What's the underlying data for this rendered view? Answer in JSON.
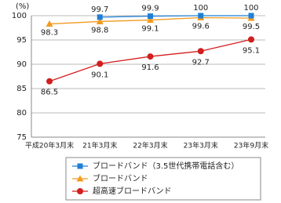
{
  "chart_data": {
    "type": "line",
    "y_label": "(%)",
    "categories": [
      "平成20年3月末",
      "21年3月末",
      "22年3月末",
      "23年3月末",
      "23年9月末"
    ],
    "series": [
      {
        "name": "ブロードバンド（3.5世代携帯電話含む）",
        "color": "#1e7fd6",
        "marker": "square",
        "values": [
          null,
          99.7,
          99.9,
          100,
          100
        ]
      },
      {
        "name": "ブロードバンド",
        "color": "#f39a1e",
        "marker": "triangle",
        "values": [
          98.3,
          98.8,
          99.1,
          99.6,
          99.5
        ]
      },
      {
        "name": "超高速ブロードバンド",
        "color": "#d21e1e",
        "marker": "circle",
        "values": [
          86.5,
          90.1,
          91.6,
          92.7,
          95.1
        ]
      }
    ],
    "ylim": [
      75,
      100
    ],
    "yticks": [
      75,
      80,
      85,
      90,
      95,
      100
    ],
    "grid": true
  }
}
